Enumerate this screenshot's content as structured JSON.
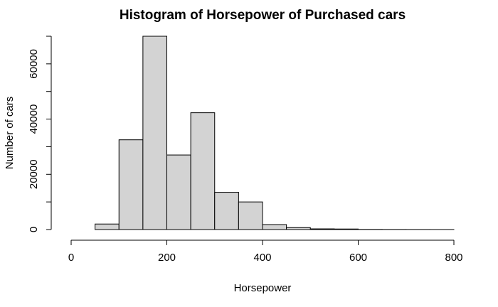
{
  "chart_data": {
    "type": "bar",
    "title": "Histogram of Horsepower of Purchased cars",
    "xlabel": "Horsepower",
    "ylabel": "Number of cars",
    "xlim": [
      0,
      800
    ],
    "ylim": [
      0,
      70000
    ],
    "x_ticks": [
      0,
      200,
      400,
      600,
      800
    ],
    "y_ticks": [
      0,
      20000,
      40000,
      60000
    ],
    "grid": false,
    "bins": [
      {
        "start": 0,
        "end": 50,
        "count": 0
      },
      {
        "start": 50,
        "end": 100,
        "count": 2000
      },
      {
        "start": 100,
        "end": 150,
        "count": 32500
      },
      {
        "start": 150,
        "end": 200,
        "count": 70000
      },
      {
        "start": 200,
        "end": 250,
        "count": 27000
      },
      {
        "start": 250,
        "end": 300,
        "count": 42300
      },
      {
        "start": 300,
        "end": 350,
        "count": 13500
      },
      {
        "start": 350,
        "end": 400,
        "count": 10000
      },
      {
        "start": 400,
        "end": 450,
        "count": 1800
      },
      {
        "start": 450,
        "end": 500,
        "count": 700
      },
      {
        "start": 500,
        "end": 550,
        "count": 250
      },
      {
        "start": 550,
        "end": 600,
        "count": 200
      },
      {
        "start": 600,
        "end": 650,
        "count": 50
      },
      {
        "start": 650,
        "end": 700,
        "count": 30
      },
      {
        "start": 700,
        "end": 750,
        "count": 20
      },
      {
        "start": 750,
        "end": 800,
        "count": 10
      }
    ]
  }
}
